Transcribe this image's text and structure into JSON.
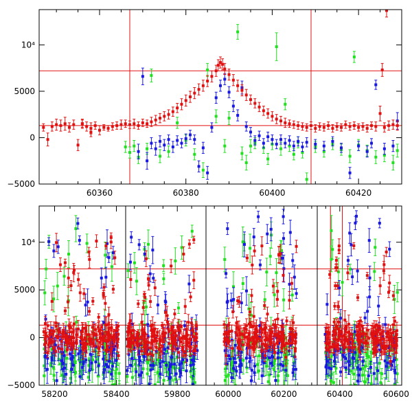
{
  "chart_data": [
    {
      "type": "scatter",
      "panel": "top",
      "xlim": [
        60346,
        60430
      ],
      "ylim": [
        -5000,
        13800
      ],
      "x_ticks": [
        60360,
        60380,
        60400,
        60420
      ],
      "y_ticks": [
        {
          "value": -5000,
          "label": "−5000"
        },
        {
          "value": 0,
          "label": "0"
        },
        {
          "value": 5000,
          "label": "5000"
        },
        {
          "value": 10000,
          "label": "10⁴"
        }
      ],
      "hlines": [
        7200,
        1300
      ],
      "vlines": [
        60367,
        60409
      ],
      "series": [
        {
          "color": "#e01010",
          "points": [
            [
              60347,
              1100,
              400
            ],
            [
              60348,
              -200,
              700
            ],
            [
              60349,
              1200,
              500
            ],
            [
              60350,
              1400,
              600
            ],
            [
              60351,
              1300,
              600
            ],
            [
              60352,
              1500,
              700
            ],
            [
              60353,
              1100,
              500
            ],
            [
              60354,
              1400,
              500
            ],
            [
              60355,
              -800,
              600
            ],
            [
              60356,
              1500,
              400
            ],
            [
              60357,
              1200,
              500
            ],
            [
              60358,
              1000,
              600
            ],
            [
              60359,
              1300,
              400
            ],
            [
              60360,
              800,
              500
            ],
            [
              60361,
              1100,
              300
            ],
            [
              60362,
              1000,
              300
            ],
            [
              60363,
              1200,
              400
            ],
            [
              60364,
              1300,
              400
            ],
            [
              60365,
              1400,
              500
            ],
            [
              60366,
              1500,
              400
            ],
            [
              60367,
              1400,
              400
            ],
            [
              60368,
              1500,
              500
            ],
            [
              60369,
              1300,
              400
            ],
            [
              60370,
              1600,
              400
            ],
            [
              60371,
              1500,
              400
            ],
            [
              60372,
              1700,
              500
            ],
            [
              60373,
              1900,
              500
            ],
            [
              60374,
              2100,
              500
            ],
            [
              60375,
              2300,
              500
            ],
            [
              60376,
              2500,
              500
            ],
            [
              60377,
              2800,
              500
            ],
            [
              60378,
              3200,
              500
            ],
            [
              60379,
              3600,
              600
            ],
            [
              60380,
              4000,
              600
            ],
            [
              60381,
              4400,
              600
            ],
            [
              60382,
              4800,
              600
            ],
            [
              60383,
              5200,
              600
            ],
            [
              60384,
              5600,
              600
            ],
            [
              60385,
              6100,
              600
            ],
            [
              60386,
              6600,
              600
            ],
            [
              60387,
              7200,
              600
            ],
            [
              60387.5,
              7800,
              600
            ],
            [
              60388,
              8100,
              600
            ],
            [
              60388.5,
              7900,
              600
            ],
            [
              60389,
              7400,
              600
            ],
            [
              60390,
              6800,
              600
            ],
            [
              60391,
              6200,
              600
            ],
            [
              60392,
              5600,
              600
            ],
            [
              60393,
              5100,
              600
            ],
            [
              60394,
              4600,
              600
            ],
            [
              60395,
              4100,
              500
            ],
            [
              60396,
              3700,
              500
            ],
            [
              60397,
              3300,
              500
            ],
            [
              60398,
              2900,
              500
            ],
            [
              60399,
              2600,
              500
            ],
            [
              60400,
              2300,
              500
            ],
            [
              60401,
              2000,
              500
            ],
            [
              60402,
              1800,
              500
            ],
            [
              60403,
              1600,
              500
            ],
            [
              60404,
              1500,
              400
            ],
            [
              60405,
              1400,
              400
            ],
            [
              60406,
              1300,
              400
            ],
            [
              60407,
              1200,
              400
            ],
            [
              60408,
              1100,
              400
            ],
            [
              60409,
              1300,
              400
            ],
            [
              60410,
              1000,
              400
            ],
            [
              60411,
              1200,
              400
            ],
            [
              60412,
              1100,
              400
            ],
            [
              60413,
              1300,
              400
            ],
            [
              60414,
              1000,
              400
            ],
            [
              60415,
              1200,
              400
            ],
            [
              60416,
              1100,
              400
            ],
            [
              60417,
              1400,
              400
            ],
            [
              60418,
              1200,
              400
            ],
            [
              60419,
              1300,
              400
            ],
            [
              60420,
              1100,
              400
            ],
            [
              60421,
              1200,
              400
            ],
            [
              60422,
              1000,
              400
            ],
            [
              60423,
              1300,
              400
            ],
            [
              60424,
              1200,
              500
            ],
            [
              60425,
              2600,
              800
            ],
            [
              60426,
              1100,
              500
            ],
            [
              60426.5,
              13700,
              700
            ],
            [
              60427,
              1300,
              500
            ],
            [
              60428,
              1400,
              500
            ],
            [
              60429,
              1300,
              500
            ],
            [
              60425.5,
              7300,
              700
            ],
            [
              60356,
              1500,
              500
            ],
            [
              60358,
              600,
              500
            ]
          ]
        },
        {
          "color": "#1818e0",
          "points": [
            [
              60369,
              -1500,
              800
            ],
            [
              60370,
              6600,
              900
            ],
            [
              60371,
              -2500,
              900
            ],
            [
              60372,
              -600,
              600
            ],
            [
              60373,
              -1200,
              700
            ],
            [
              60374,
              -400,
              600
            ],
            [
              60375,
              -800,
              600
            ],
            [
              60376,
              -200,
              500
            ],
            [
              60377,
              -1000,
              600
            ],
            [
              60378,
              -300,
              500
            ],
            [
              60379,
              -600,
              500
            ],
            [
              60380,
              -100,
              500
            ],
            [
              60381,
              300,
              500
            ],
            [
              60382,
              -200,
              500
            ],
            [
              60383,
              -3100,
              600
            ],
            [
              60384,
              -1100,
              600
            ],
            [
              60385,
              -3800,
              700
            ],
            [
              60386,
              1100,
              500
            ],
            [
              60387,
              4300,
              600
            ],
            [
              60388,
              5600,
              600
            ],
            [
              60389,
              6300,
              600
            ],
            [
              60390,
              4900,
              600
            ],
            [
              60391,
              3400,
              600
            ],
            [
              60392,
              2400,
              600
            ],
            [
              60393,
              5400,
              700
            ],
            [
              60394,
              1200,
              500
            ],
            [
              60395,
              600,
              500
            ],
            [
              60396,
              -300,
              500
            ],
            [
              60397,
              200,
              500
            ],
            [
              60398,
              -600,
              500
            ],
            [
              60399,
              100,
              500
            ],
            [
              60400,
              -200,
              500
            ],
            [
              60401,
              -700,
              500
            ],
            [
              60402,
              -200,
              500
            ],
            [
              60403,
              -600,
              500
            ],
            [
              60404,
              -300,
              500
            ],
            [
              60405,
              -900,
              500
            ],
            [
              60406,
              -400,
              500
            ],
            [
              60407,
              -1000,
              500
            ],
            [
              60408,
              -500,
              500
            ],
            [
              60410,
              -700,
              500
            ],
            [
              60412,
              -900,
              500
            ],
            [
              60414,
              -400,
              500
            ],
            [
              60416,
              -1100,
              500
            ],
            [
              60418,
              -3800,
              600
            ],
            [
              60420,
              -900,
              500
            ],
            [
              60422,
              -1500,
              600
            ],
            [
              60423,
              -600,
              500
            ],
            [
              60424,
              5700,
              500
            ],
            [
              60426,
              -1200,
              600
            ],
            [
              60428,
              -900,
              600
            ],
            [
              60429,
              1800,
              900
            ]
          ]
        },
        {
          "color": "#20e020",
          "points": [
            [
              60366,
              -1000,
              600
            ],
            [
              60367,
              -1600,
              600
            ],
            [
              60368,
              -900,
              600
            ],
            [
              60369,
              -2100,
              700
            ],
            [
              60371,
              -1200,
              600
            ],
            [
              60372,
              6700,
              700
            ],
            [
              60374,
              -2000,
              700
            ],
            [
              60376,
              -1500,
              600
            ],
            [
              60378,
              1600,
              600
            ],
            [
              60380,
              -300,
              600
            ],
            [
              60382,
              -1800,
              600
            ],
            [
              60384,
              -3500,
              800
            ],
            [
              60385,
              7300,
              700
            ],
            [
              60387,
              2300,
              700
            ],
            [
              60389,
              -900,
              700
            ],
            [
              60390,
              2100,
              700
            ],
            [
              60392,
              11400,
              800
            ],
            [
              60393,
              -1700,
              700
            ],
            [
              60394,
              -2700,
              800
            ],
            [
              60395,
              -900,
              700
            ],
            [
              60396,
              -600,
              600
            ],
            [
              60398,
              -1100,
              600
            ],
            [
              60399,
              -2300,
              600
            ],
            [
              60400,
              -700,
              600
            ],
            [
              60401,
              9800,
              1500
            ],
            [
              60402,
              -1200,
              700
            ],
            [
              60403,
              3600,
              600
            ],
            [
              60404,
              -900,
              600
            ],
            [
              60405,
              -1800,
              600
            ],
            [
              60406,
              -500,
              600
            ],
            [
              60407,
              -1600,
              600
            ],
            [
              60408,
              -4500,
              700
            ],
            [
              60410,
              -1000,
              600
            ],
            [
              60412,
              -1500,
              600
            ],
            [
              60414,
              -700,
              600
            ],
            [
              60416,
              -1300,
              600
            ],
            [
              60418,
              -2000,
              700
            ],
            [
              60419,
              8700,
              600
            ],
            [
              60420,
              -800,
              600
            ],
            [
              60422,
              -1400,
              600
            ],
            [
              60424,
              -2100,
              700
            ],
            [
              60426,
              -1900,
              700
            ],
            [
              60428,
              -2700,
              800
            ],
            [
              60429,
              -1400,
              700
            ]
          ]
        }
      ]
    },
    {
      "type": "scatter",
      "panel": "bottom",
      "broken_x_axis": true,
      "ylim": [
        -5000,
        13800
      ],
      "y_ticks": [
        {
          "value": -5000,
          "label": "−5000"
        },
        {
          "value": 0,
          "label": "0"
        },
        {
          "value": 5000,
          "label": "5000"
        },
        {
          "value": 10000,
          "label": "10⁴"
        }
      ],
      "hlines": [
        7200,
        1300
      ],
      "segments": [
        {
          "xlim": [
            58150,
            58430
          ],
          "x_ticks": [
            58200,
            58400
          ],
          "vlines": []
        },
        {
          "xlim": [
            59620,
            59900
          ],
          "x_ticks": [
            59800
          ],
          "vlines": []
        },
        {
          "xlim": [
            59920,
            60320
          ],
          "x_ticks": [
            60000,
            60200
          ],
          "vlines": []
        },
        {
          "xlim": [
            60320,
            60620
          ],
          "x_ticks": [
            60400,
            60600
          ],
          "vlines": [
            60367,
            60409
          ]
        }
      ],
      "series_colors": [
        "#e01010",
        "#1818e0",
        "#20e020"
      ],
      "seasons": [
        {
          "from": 58165,
          "to": 58410
        },
        {
          "from": 59625,
          "to": 59870
        },
        {
          "from": 59985,
          "to": 60245
        },
        {
          "from": 60348,
          "to": 60605
        }
      ],
      "highlighted_event": {
        "x": 60388,
        "y": 8100
      }
    }
  ]
}
